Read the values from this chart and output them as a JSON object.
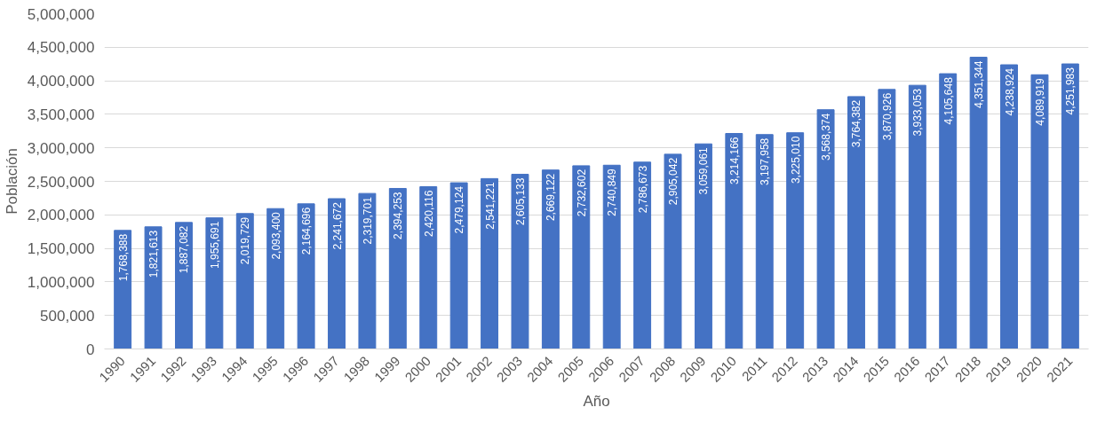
{
  "chart_data": {
    "type": "bar",
    "xlabel": "Año",
    "ylabel": "Población",
    "categories": [
      "1990",
      "1991",
      "1992",
      "1993",
      "1994",
      "1995",
      "1996",
      "1997",
      "1998",
      "1999",
      "2000",
      "2001",
      "2002",
      "2003",
      "2004",
      "2005",
      "2006",
      "2007",
      "2008",
      "2009",
      "2010",
      "2011",
      "2012",
      "2013",
      "2014",
      "2015",
      "2016",
      "2017",
      "2018",
      "2019",
      "2020",
      "2021"
    ],
    "values": [
      1768388,
      1821613,
      1887082,
      1955691,
      2019729,
      2093400,
      2164696,
      2241672,
      2319701,
      2394253,
      2420116,
      2479124,
      2541221,
      2605133,
      2669122,
      2732602,
      2740849,
      2786673,
      2905042,
      3059061,
      3214166,
      3197958,
      3225010,
      3568374,
      3764382,
      3870926,
      3933053,
      4105648,
      4351344,
      4238924,
      4089919,
      4251983
    ],
    "color": "#4472c4",
    "ylim": [
      0,
      5000000
    ],
    "yticks": [
      {
        "value": 0,
        "label": "0"
      },
      {
        "value": 500000,
        "label": "500,000"
      },
      {
        "value": 1000000,
        "label": "1,000,000"
      },
      {
        "value": 1500000,
        "label": "1,500,000"
      },
      {
        "value": 2000000,
        "label": "2,000,000"
      },
      {
        "value": 2500000,
        "label": "2,500,000"
      },
      {
        "value": 3000000,
        "label": "3,000,000"
      },
      {
        "value": 3500000,
        "label": "3,500,000"
      },
      {
        "value": 4000000,
        "label": "4,000,000"
      },
      {
        "value": 4500000,
        "label": "4,500,000"
      },
      {
        "value": 5000000,
        "label": "5,000,000"
      }
    ],
    "value_labels": [
      "1,768,388",
      "1,821,613",
      "1,887,082",
      "1,955,691",
      "2,019,729",
      "2,093,400",
      "2,164,696",
      "2,241,672",
      "2,319,701",
      "2,394,253",
      "2,420,116",
      "2,479,124",
      "2,541,221",
      "2,605,133",
      "2,669,122",
      "2,732,602",
      "2,740,849",
      "2,786,673",
      "2,905,042",
      "3,059,061",
      "3,214,166",
      "3,197,958",
      "3,225,010",
      "3,568,374",
      "3,764,382",
      "3,870,926",
      "3,933,053",
      "4,105,648",
      "4,351,344",
      "4,238,924",
      "4,089,919",
      "4,251,983"
    ],
    "grid": "y"
  }
}
